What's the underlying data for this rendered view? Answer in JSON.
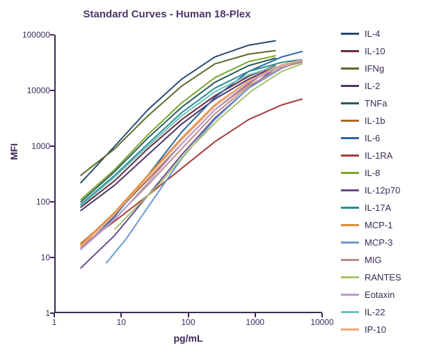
{
  "chart": {
    "type": "line",
    "title": "Standard Curves - Human 18-Plex",
    "title_color": "#4a3668",
    "title_fontsize": 15,
    "xlabel": "pg/mL",
    "ylabel": "MFI",
    "label_color": "#3a2a56",
    "label_fontsize": 14,
    "tick_fontsize": 12,
    "background_color": "#ffffff",
    "axis_color": "#3a2a56",
    "xscale": "log",
    "yscale": "log",
    "xlim": [
      1,
      10000
    ],
    "ylim": [
      1,
      100000
    ],
    "xticks": [
      1,
      10,
      100,
      1000,
      10000
    ],
    "yticks": [
      1,
      10,
      100,
      1000,
      10000,
      100000
    ],
    "line_width": 2,
    "series": [
      {
        "name": "IL-4",
        "color": "#2a4a6e",
        "x": [
          2.5,
          8,
          25,
          80,
          250,
          800,
          2000
        ],
        "y": [
          220,
          1000,
          4500,
          16000,
          40000,
          65000,
          78000
        ]
      },
      {
        "name": "IL-10",
        "color": "#6a2a3a",
        "x": [
          2.5,
          8,
          25,
          80,
          250,
          800,
          2000
        ],
        "y": [
          80,
          240,
          900,
          3000,
          8000,
          18000,
          28000
        ]
      },
      {
        "name": "IFNg",
        "color": "#5a6a2a",
        "x": [
          2.5,
          8,
          25,
          80,
          250,
          800,
          2000
        ],
        "y": [
          300,
          900,
          3500,
          12000,
          30000,
          45000,
          52000
        ]
      },
      {
        "name": "IL-2",
        "color": "#4a3668",
        "x": [
          2.5,
          8,
          25,
          80,
          250,
          800,
          2000
        ],
        "y": [
          70,
          200,
          700,
          2500,
          7000,
          16000,
          27000
        ]
      },
      {
        "name": "TNFa",
        "color": "#2a5a5a",
        "x": [
          2.5,
          8,
          25,
          80,
          250,
          800,
          2000
        ],
        "y": [
          100,
          350,
          1400,
          5000,
          14000,
          28000,
          38000
        ]
      },
      {
        "name": "IL-1b",
        "color": "#a66a2a",
        "x": [
          2.5,
          8,
          25,
          80,
          250,
          800,
          2000
        ],
        "y": [
          18,
          60,
          250,
          1100,
          4500,
          13000,
          28000
        ]
      },
      {
        "name": "IL-6",
        "color": "#2a66a6",
        "x": [
          2.5,
          8,
          25,
          80,
          250,
          800,
          2500,
          5000
        ],
        "y": [
          14,
          55,
          300,
          1800,
          7500,
          22000,
          40000,
          50000
        ]
      },
      {
        "name": "IL-1RA",
        "color": "#a63a3a",
        "x": [
          2.5,
          8,
          25,
          80,
          250,
          800,
          2500,
          5000
        ],
        "y": [
          16,
          45,
          130,
          400,
          1200,
          3000,
          5500,
          7000
        ]
      },
      {
        "name": "IL-8",
        "color": "#7aa62a",
        "x": [
          2.5,
          8,
          25,
          80,
          250,
          800,
          2000
        ],
        "y": [
          110,
          380,
          1600,
          6000,
          17000,
          33000,
          42000
        ]
      },
      {
        "name": "IL-12p70",
        "color": "#6a4a8e",
        "x": [
          2.5,
          8,
          25,
          80,
          250,
          800,
          2000
        ],
        "y": [
          6.5,
          25,
          130,
          700,
          3200,
          11000,
          25000
        ]
      },
      {
        "name": "IL-17A",
        "color": "#2a8e8e",
        "x": [
          2.5,
          8,
          25,
          80,
          250,
          800,
          2500,
          5000
        ],
        "y": [
          90,
          300,
          1100,
          4000,
          11000,
          22000,
          32000,
          36000
        ]
      },
      {
        "name": "MCP-1",
        "color": "#e08a3a",
        "x": [
          2.5,
          8,
          25,
          80,
          250,
          800,
          2500,
          5000
        ],
        "y": [
          17,
          65,
          300,
          1400,
          5500,
          15000,
          28000,
          34000
        ]
      },
      {
        "name": "MCP-3",
        "color": "#6a9ad2",
        "x": [
          6,
          12,
          30,
          80,
          250,
          800,
          2500,
          5000
        ],
        "y": [
          8,
          22,
          110,
          600,
          3000,
          11000,
          25000,
          34000
        ]
      },
      {
        "name": "MIG",
        "color": "#c08a8a",
        "x": [
          2.5,
          8,
          25,
          80,
          250,
          800,
          2500,
          5000
        ],
        "y": [
          15,
          50,
          200,
          900,
          3800,
          12000,
          26000,
          32000
        ]
      },
      {
        "name": "RANTES",
        "color": "#a6c26a",
        "x": [
          8,
          15,
          40,
          100,
          300,
          900,
          2500,
          5000
        ],
        "y": [
          32,
          70,
          230,
          850,
          3200,
          10000,
          22000,
          30000
        ]
      },
      {
        "name": "Eotaxin",
        "color": "#b29ad2",
        "x": [
          2.5,
          8,
          25,
          80,
          250,
          800,
          2500,
          5000
        ],
        "y": [
          14,
          48,
          220,
          1100,
          4500,
          14000,
          28000,
          36000
        ]
      },
      {
        "name": "IL-22",
        "color": "#6ac2c2",
        "x": [
          2.5,
          8,
          25,
          80,
          250,
          800,
          2000
        ],
        "y": [
          85,
          280,
          1000,
          3500,
          9500,
          19000,
          27000
        ]
      },
      {
        "name": "IP-10",
        "color": "#f0a87a",
        "x": [
          2.5,
          8,
          25,
          80,
          250,
          800,
          2500,
          5000
        ],
        "y": [
          16,
          60,
          280,
          1300,
          5200,
          15000,
          29000,
          35000
        ]
      }
    ]
  }
}
